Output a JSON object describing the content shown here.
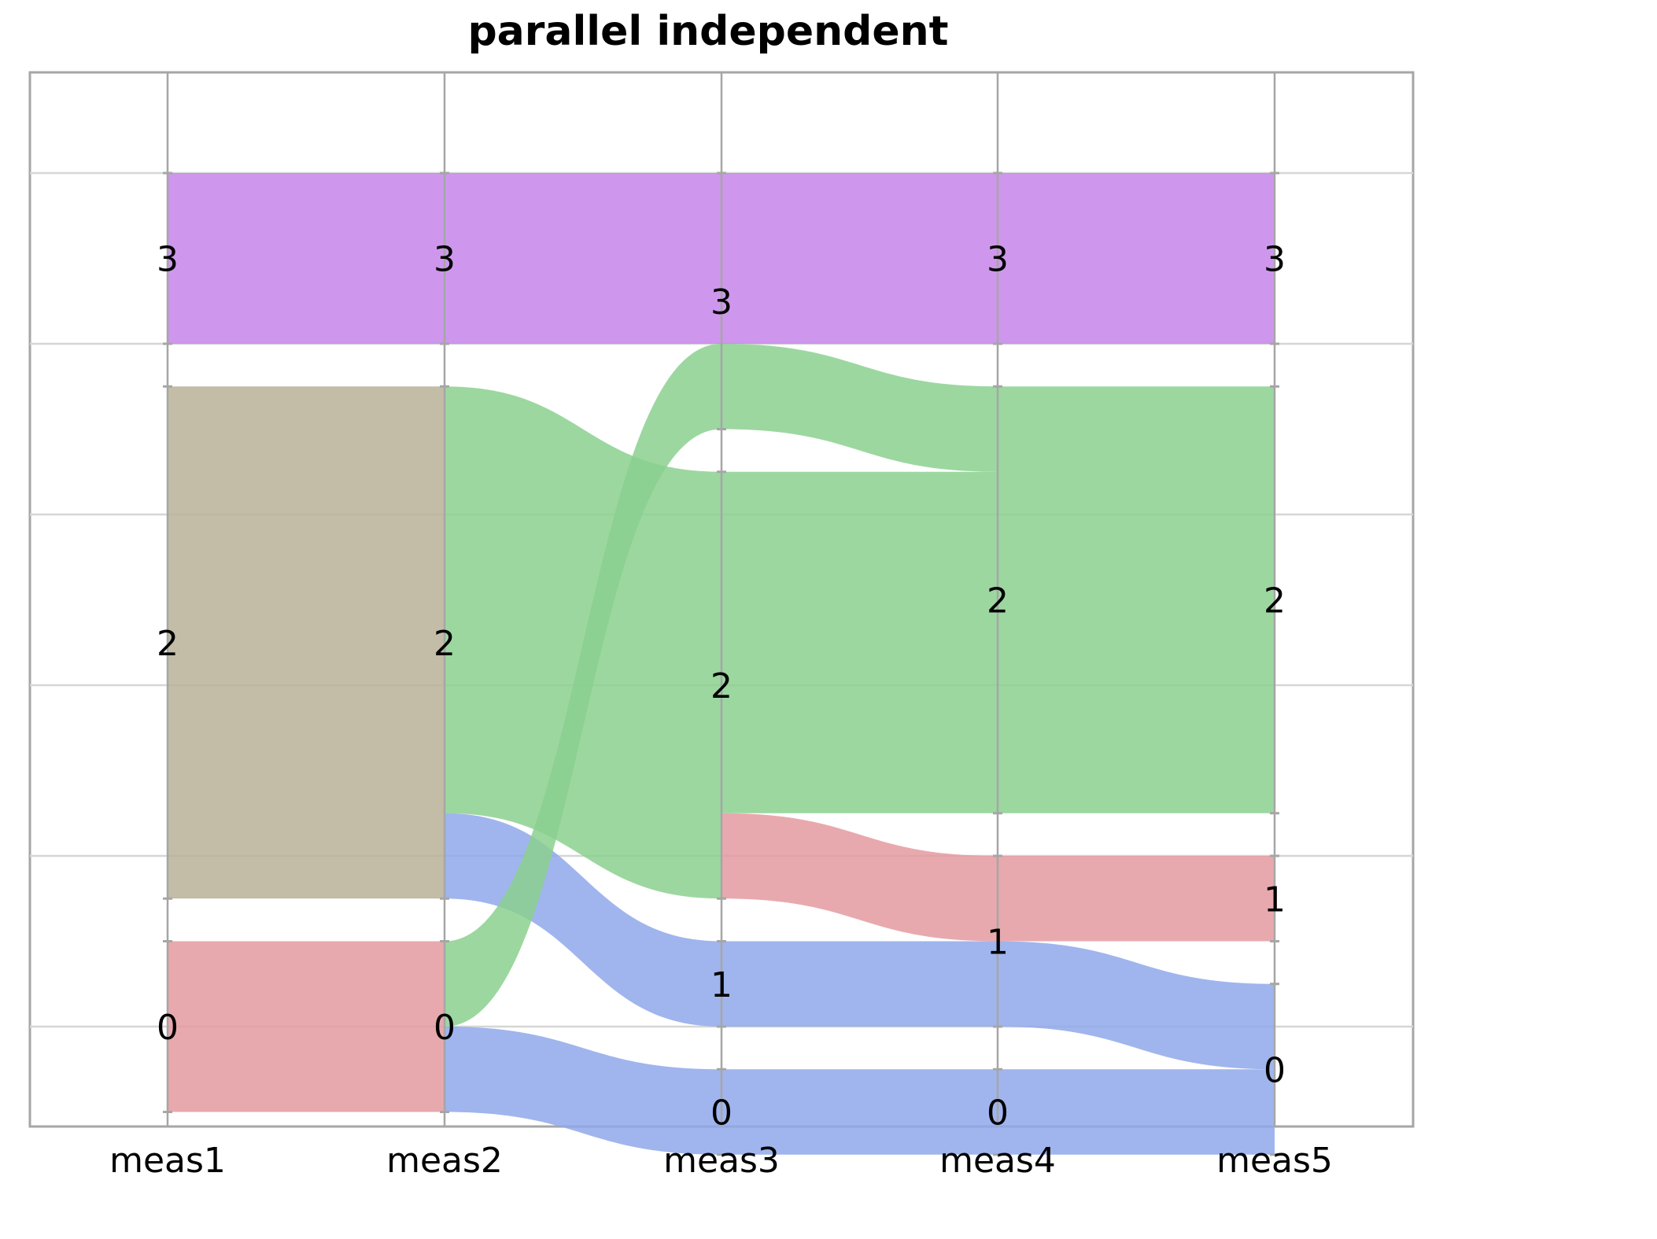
{
  "chart_data": {
    "type": "parallel-sets",
    "title": "parallel independent",
    "axes": [
      "meas1",
      "meas2",
      "meas3",
      "meas4",
      "meas5"
    ],
    "categories": [
      "0",
      "1",
      "2",
      "3"
    ],
    "colors": {
      "0": "#8fa8ea",
      "1": "#e49aa0",
      "2": "#8bd08f",
      "3": "#c585ea",
      "mixed": "#b8b198"
    },
    "nodes": [
      {
        "axis": "meas1",
        "category": "3",
        "label": "3",
        "count": 2,
        "color": "#c585ea"
      },
      {
        "axis": "meas1",
        "category": "2",
        "label": "2",
        "count": 6,
        "color": "#b8b198"
      },
      {
        "axis": "meas1",
        "category": "0",
        "label": "0",
        "count": 2,
        "color": "#e49aa0"
      },
      {
        "axis": "meas2",
        "category": "3",
        "label": "3",
        "count": 2,
        "color": "#c585ea"
      },
      {
        "axis": "meas2",
        "category": "2",
        "label": "2",
        "count": 6,
        "color": "#b8b198"
      },
      {
        "axis": "meas2",
        "category": "0",
        "label": "0",
        "count": 2,
        "color": "#e49aa0"
      },
      {
        "axis": "meas3",
        "category": "3",
        "label": "3",
        "count": 3,
        "color": "#c585ea"
      },
      {
        "axis": "meas3",
        "category": "2",
        "label": "2",
        "count": 5,
        "color": "#8bd08f"
      },
      {
        "axis": "meas3",
        "category": "1",
        "label": "1",
        "count": 1,
        "color": "#8fa8ea"
      },
      {
        "axis": "meas3",
        "category": "0",
        "label": "0",
        "count": 1,
        "color": "#8fa8ea"
      },
      {
        "axis": "meas4",
        "category": "3",
        "label": "3",
        "count": 2,
        "color": "#c585ea"
      },
      {
        "axis": "meas4",
        "category": "2",
        "label": "2",
        "count": 5,
        "color": "#8bd08f"
      },
      {
        "axis": "meas4",
        "category": "1",
        "label": "1",
        "count": 2,
        "color": "#e49aa0"
      },
      {
        "axis": "meas4",
        "category": "0",
        "label": "0",
        "count": 1,
        "color": "#8fa8ea"
      },
      {
        "axis": "meas5",
        "category": "3",
        "label": "3",
        "count": 2,
        "color": "#c585ea"
      },
      {
        "axis": "meas5",
        "category": "2",
        "label": "2",
        "count": 5,
        "color": "#8bd08f"
      },
      {
        "axis": "meas5",
        "category": "1",
        "label": "1",
        "count": 1,
        "color": "#e49aa0"
      },
      {
        "axis": "meas5",
        "category": "0",
        "label": "0",
        "count": 2,
        "color": "#8fa8ea"
      }
    ],
    "links": [
      {
        "from": "meas1",
        "to": "meas2",
        "source": "3",
        "target": "3",
        "count": 2,
        "color": "#c585ea"
      },
      {
        "from": "meas1",
        "to": "meas2",
        "source": "2",
        "target": "2",
        "count": 6,
        "color": "#b8b198"
      },
      {
        "from": "meas1",
        "to": "meas2",
        "source": "0",
        "target": "0",
        "count": 2,
        "color": "#e49aa0"
      },
      {
        "from": "meas2",
        "to": "meas3",
        "source": "3",
        "target": "3",
        "count": 2,
        "color": "#c585ea"
      },
      {
        "from": "meas2",
        "to": "meas3",
        "source": "2",
        "target": "2",
        "count": 5,
        "color": "#8bd08f"
      },
      {
        "from": "meas2",
        "to": "meas3",
        "source": "2",
        "target": "1",
        "count": 1,
        "color": "#8fa8ea"
      },
      {
        "from": "meas2",
        "to": "meas3",
        "source": "0",
        "target": "3",
        "count": 1,
        "color": "#8bd08f"
      },
      {
        "from": "meas2",
        "to": "meas3",
        "source": "0",
        "target": "0",
        "count": 1,
        "color": "#8fa8ea"
      },
      {
        "from": "meas3",
        "to": "meas4",
        "source": "3",
        "target": "3",
        "count": 2,
        "color": "#c585ea"
      },
      {
        "from": "meas3",
        "to": "meas4",
        "source": "3",
        "target": "2",
        "count": 1,
        "color": "#8bd08f"
      },
      {
        "from": "meas3",
        "to": "meas4",
        "source": "2",
        "target": "2",
        "count": 4,
        "color": "#8bd08f"
      },
      {
        "from": "meas3",
        "to": "meas4",
        "source": "2",
        "target": "1",
        "count": 1,
        "color": "#e49aa0"
      },
      {
        "from": "meas3",
        "to": "meas4",
        "source": "1",
        "target": "1",
        "count": 1,
        "color": "#8fa8ea"
      },
      {
        "from": "meas3",
        "to": "meas4",
        "source": "0",
        "target": "0",
        "count": 1,
        "color": "#8fa8ea"
      },
      {
        "from": "meas4",
        "to": "meas5",
        "source": "3",
        "target": "3",
        "count": 2,
        "color": "#c585ea"
      },
      {
        "from": "meas4",
        "to": "meas5",
        "source": "2",
        "target": "2",
        "count": 5,
        "color": "#8bd08f"
      },
      {
        "from": "meas4",
        "to": "meas5",
        "source": "1",
        "target": "1",
        "count": 1,
        "color": "#e49aa0"
      },
      {
        "from": "meas4",
        "to": "meas5",
        "source": "1",
        "target": "0",
        "count": 1,
        "color": "#8fa8ea"
      },
      {
        "from": "meas4",
        "to": "meas5",
        "source": "0",
        "target": "0",
        "count": 1,
        "color": "#8fa8ea"
      }
    ],
    "grid": true,
    "legend": "none"
  }
}
